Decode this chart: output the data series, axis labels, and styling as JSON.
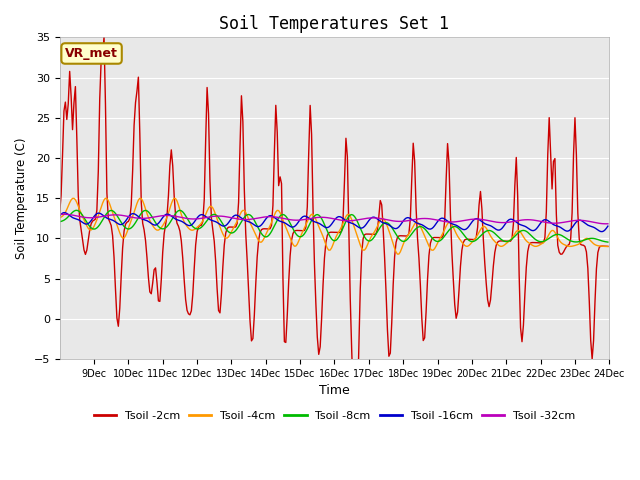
{
  "title": "Soil Temperatures Set 1",
  "xlabel": "Time",
  "ylabel": "Soil Temperature (C)",
  "ylim": [
    -5,
    35
  ],
  "colors": {
    "Tsoil -2cm": "#cc0000",
    "Tsoil -4cm": "#ff9900",
    "Tsoil -8cm": "#00bb00",
    "Tsoil -16cm": "#0000cc",
    "Tsoil -32cm": "#bb00bb"
  },
  "yticks": [
    -5,
    0,
    5,
    10,
    15,
    20,
    25,
    30,
    35
  ],
  "annotation_text": "VR_met",
  "annotation_text_color": "#880000",
  "annotation_bg": "#ffffcc",
  "annotation_edge": "#aa8800",
  "background_color": "#e8e8e8",
  "title_fontsize": 12
}
